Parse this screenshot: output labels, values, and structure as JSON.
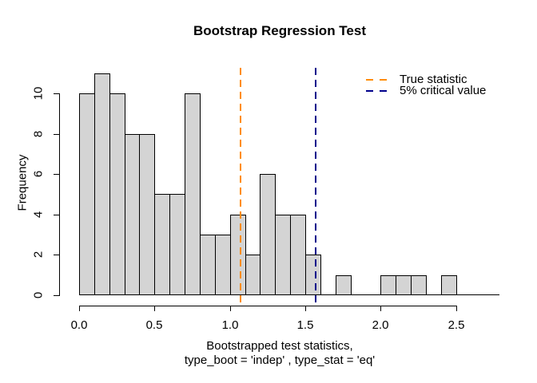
{
  "figure": {
    "background": "#FFFFFF"
  },
  "chart_data": {
    "type": "bar",
    "subtype": "histogram",
    "title": "Bootstrap Regression Test",
    "ylabel": "Frequency",
    "xlabel_line1": "Bootstrapped test statistics,",
    "xlabel_line2": "type_boot = 'indep' , type_stat = 'eq'",
    "bins": {
      "start": 0.0,
      "width": 0.1
    },
    "frequencies": [
      10,
      11,
      10,
      8,
      8,
      5,
      5,
      10,
      3,
      3,
      4,
      2,
      6,
      4,
      4,
      2,
      0,
      1,
      0,
      0,
      1,
      1,
      1,
      0,
      1
    ],
    "x_tick_values": [
      0.0,
      0.5,
      1.0,
      1.5,
      2.0,
      2.5
    ],
    "x_tick_labels": [
      "0.0",
      "0.5",
      "1.0",
      "1.5",
      "2.0",
      "2.5"
    ],
    "y_tick_values": [
      0,
      2,
      4,
      6,
      8,
      10
    ],
    "y_tick_labels": [
      "0",
      "2",
      "4",
      "6",
      "8",
      "10"
    ],
    "xlim": [
      0,
      2.8
    ],
    "ylim": [
      0,
      11
    ],
    "grid": false,
    "legend_position": "top-right",
    "bar_fill_color": "#D4D4D4",
    "bar_border_color": "#000000",
    "baseline_extends_to": 2.79,
    "vlines": [
      {
        "value": 1.07,
        "color": "#FF8C00",
        "style": "dashed",
        "label": "True statistic"
      },
      {
        "value": 1.57,
        "color": "#00008B",
        "style": "dashed",
        "label": "5% critical value"
      }
    ]
  }
}
